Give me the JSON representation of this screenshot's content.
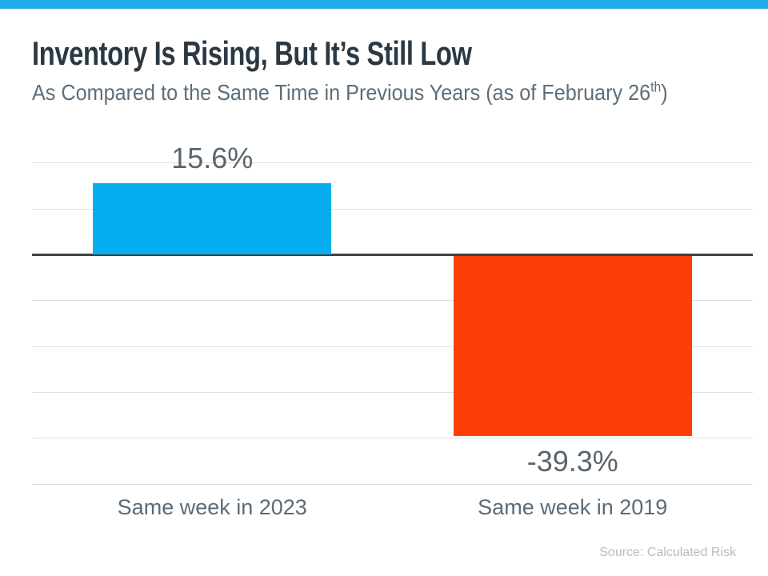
{
  "page": {
    "title": "Inventory Is Rising, But It’s Still Low",
    "subtitle_prefix": "As Compared to the Same Time in Previous Years (as of February 26",
    "subtitle_sup": "th",
    "subtitle_suffix": ")",
    "source": "Source: Calculated Risk"
  },
  "colors": {
    "banner_blue": "#22ACE8",
    "bar_positive": "#05ADEE",
    "bar_negative": "#FB3D08",
    "title_text": "#2B3842",
    "subtitle_text": "#5D6E79",
    "value_label_text": "#59656E",
    "category_label_text": "#5A6B78",
    "source_text": "#B4BDC3",
    "gridline": "#DFDFDF",
    "zero_line": "#394349"
  },
  "chart_data": {
    "type": "bar",
    "title": "Inventory Is Rising, But It’s Still Low",
    "subtitle": "As Compared to the Same Time in Previous Years (as of February 26th)",
    "categories": [
      "Same week in 2023",
      "Same week in 2019"
    ],
    "values": [
      15.6,
      -39.3
    ],
    "value_labels": [
      "15.6%",
      "-39.3%"
    ],
    "bar_colors": [
      "#05ADEE",
      "#FB3D08"
    ],
    "xlabel": "",
    "ylabel": "",
    "ylim": [
      -50,
      20
    ],
    "gridline_step": 10,
    "grid": true,
    "legend": false,
    "zero_baseline": true,
    "source": "Source: Calculated Risk"
  }
}
